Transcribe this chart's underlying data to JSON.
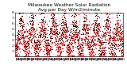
{
  "title": "Milwaukee Weather Solar Radiation",
  "subtitle": "Avg per Day W/m2/minute",
  "title_fontsize": 4.2,
  "background_color": "#ffffff",
  "ylim": [
    0,
    8
  ],
  "yticks": [
    1,
    2,
    3,
    4,
    5,
    6,
    7,
    8
  ],
  "ytick_labels": [
    "1",
    "2",
    "3",
    "4",
    "5",
    "6",
    "7",
    "8"
  ],
  "ylabel_fontsize": 3.0,
  "xlabel_fontsize": 2.8,
  "dot_size_black": 0.8,
  "dot_size_red": 0.9,
  "black_color": "#000000",
  "red_color": "#ff0000",
  "grid_color": "#999999",
  "n_years": 10,
  "seed": 42
}
